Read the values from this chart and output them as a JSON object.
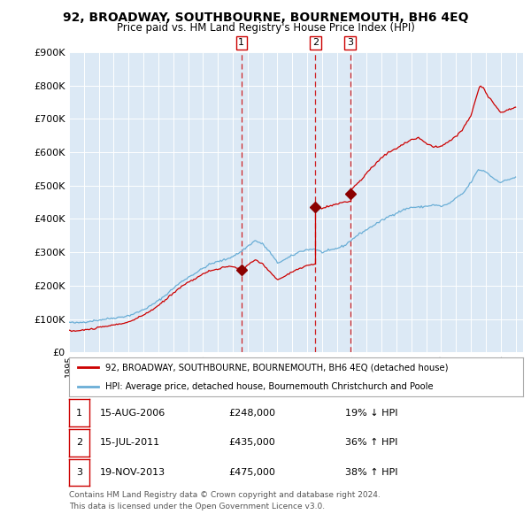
{
  "title": "92, BROADWAY, SOUTHBOURNE, BOURNEMOUTH, BH6 4EQ",
  "subtitle": "Price paid vs. HM Land Registry's House Price Index (HPI)",
  "legend_line1": "92, BROADWAY, SOUTHBOURNE, BOURNEMOUTH, BH6 4EQ (detached house)",
  "legend_line2": "HPI: Average price, detached house, Bournemouth Christchurch and Poole",
  "footer1": "Contains HM Land Registry data © Crown copyright and database right 2024.",
  "footer2": "This data is licensed under the Open Government Licence v3.0.",
  "transactions": [
    {
      "num": 1,
      "date": "15-AUG-2006",
      "price": 248000,
      "pct": "19%",
      "dir": "↓"
    },
    {
      "num": 2,
      "date": "15-JUL-2011",
      "price": 435000,
      "pct": "36%",
      "dir": "↑"
    },
    {
      "num": 3,
      "date": "19-NOV-2013",
      "price": 475000,
      "pct": "38%",
      "dir": "↑"
    }
  ],
  "hpi_color": "#6aaed6",
  "price_color": "#cc0000",
  "bg_color": "#dce9f5",
  "grid_color": "#ffffff",
  "dashed_color": "#cc0000",
  "marker_color": "#8b0000",
  "ylim": [
    0,
    900000
  ],
  "yticks": [
    0,
    100000,
    200000,
    300000,
    400000,
    500000,
    600000,
    700000,
    800000,
    900000
  ],
  "xlim_start": 1995.0,
  "xlim_end": 2025.5,
  "hpi_anchors": [
    [
      1995.0,
      90000
    ],
    [
      1995.5,
      88000
    ],
    [
      1996.0,
      91000
    ],
    [
      1996.5,
      94000
    ],
    [
      1997.0,
      97000
    ],
    [
      1997.5,
      100000
    ],
    [
      1998.0,
      103000
    ],
    [
      1998.5,
      106000
    ],
    [
      1999.0,
      110000
    ],
    [
      1999.5,
      118000
    ],
    [
      2000.0,
      128000
    ],
    [
      2000.5,
      140000
    ],
    [
      2001.0,
      155000
    ],
    [
      2001.5,
      172000
    ],
    [
      2002.0,
      192000
    ],
    [
      2002.5,
      210000
    ],
    [
      2003.0,
      225000
    ],
    [
      2003.5,
      238000
    ],
    [
      2004.0,
      252000
    ],
    [
      2004.5,
      265000
    ],
    [
      2005.0,
      272000
    ],
    [
      2005.5,
      278000
    ],
    [
      2006.0,
      288000
    ],
    [
      2006.5,
      300000
    ],
    [
      2007.0,
      318000
    ],
    [
      2007.5,
      335000
    ],
    [
      2008.0,
      325000
    ],
    [
      2008.5,
      300000
    ],
    [
      2009.0,
      268000
    ],
    [
      2009.5,
      278000
    ],
    [
      2010.0,
      290000
    ],
    [
      2010.5,
      302000
    ],
    [
      2011.0,
      308000
    ],
    [
      2011.5,
      310000
    ],
    [
      2012.0,
      300000
    ],
    [
      2012.5,
      305000
    ],
    [
      2013.0,
      312000
    ],
    [
      2013.5,
      320000
    ],
    [
      2014.0,
      338000
    ],
    [
      2014.5,
      355000
    ],
    [
      2015.0,
      368000
    ],
    [
      2015.5,
      382000
    ],
    [
      2016.0,
      395000
    ],
    [
      2016.5,
      408000
    ],
    [
      2017.0,
      418000
    ],
    [
      2017.5,
      428000
    ],
    [
      2018.0,
      435000
    ],
    [
      2018.5,
      435000
    ],
    [
      2019.0,
      438000
    ],
    [
      2019.5,
      442000
    ],
    [
      2020.0,
      438000
    ],
    [
      2020.5,
      445000
    ],
    [
      2021.0,
      462000
    ],
    [
      2021.5,
      478000
    ],
    [
      2022.0,
      510000
    ],
    [
      2022.5,
      548000
    ],
    [
      2023.0,
      542000
    ],
    [
      2023.5,
      522000
    ],
    [
      2024.0,
      510000
    ],
    [
      2024.5,
      518000
    ],
    [
      2025.0,
      525000
    ]
  ],
  "price_anchors_seg1": [
    [
      1995.0,
      65000
    ],
    [
      1995.5,
      64000
    ],
    [
      1996.0,
      67000
    ],
    [
      1996.5,
      70000
    ],
    [
      1997.0,
      74000
    ],
    [
      1997.5,
      78000
    ],
    [
      1998.0,
      82000
    ],
    [
      1998.5,
      86000
    ],
    [
      1999.0,
      91000
    ],
    [
      1999.5,
      100000
    ],
    [
      2000.0,
      112000
    ],
    [
      2000.5,
      125000
    ],
    [
      2001.0,
      140000
    ],
    [
      2001.5,
      158000
    ],
    [
      2002.0,
      178000
    ],
    [
      2002.5,
      196000
    ],
    [
      2003.0,
      210000
    ],
    [
      2003.5,
      222000
    ],
    [
      2004.0,
      235000
    ],
    [
      2004.5,
      245000
    ],
    [
      2005.0,
      250000
    ],
    [
      2005.5,
      255000
    ],
    [
      2006.0,
      258000
    ],
    [
      2006.58,
      248000
    ]
  ],
  "price_anchors_seg2": [
    [
      2006.58,
      248000
    ],
    [
      2007.0,
      262000
    ],
    [
      2007.5,
      278000
    ],
    [
      2008.0,
      265000
    ],
    [
      2008.5,
      240000
    ],
    [
      2009.0,
      218000
    ],
    [
      2009.5,
      228000
    ],
    [
      2010.0,
      242000
    ],
    [
      2010.5,
      252000
    ],
    [
      2011.0,
      260000
    ],
    [
      2011.55,
      265000
    ]
  ],
  "price_anchors_seg3": [
    [
      2011.55,
      435000
    ],
    [
      2012.0,
      432000
    ],
    [
      2012.5,
      438000
    ],
    [
      2013.0,
      445000
    ],
    [
      2013.88,
      455000
    ]
  ],
  "price_anchors_seg4": [
    [
      2013.88,
      475000
    ],
    [
      2014.0,
      490000
    ],
    [
      2014.5,
      510000
    ],
    [
      2015.0,
      538000
    ],
    [
      2015.5,
      560000
    ],
    [
      2016.0,
      585000
    ],
    [
      2016.5,
      600000
    ],
    [
      2017.0,
      612000
    ],
    [
      2017.5,
      625000
    ],
    [
      2018.0,
      638000
    ],
    [
      2018.5,
      642000
    ],
    [
      2019.0,
      628000
    ],
    [
      2019.5,
      615000
    ],
    [
      2020.0,
      618000
    ],
    [
      2020.5,
      632000
    ],
    [
      2021.0,
      648000
    ],
    [
      2021.5,
      672000
    ],
    [
      2022.0,
      710000
    ],
    [
      2022.3,
      758000
    ],
    [
      2022.6,
      800000
    ],
    [
      2022.9,
      792000
    ],
    [
      2023.0,
      778000
    ],
    [
      2023.5,
      748000
    ],
    [
      2024.0,
      718000
    ],
    [
      2024.5,
      728000
    ],
    [
      2025.0,
      735000
    ]
  ]
}
